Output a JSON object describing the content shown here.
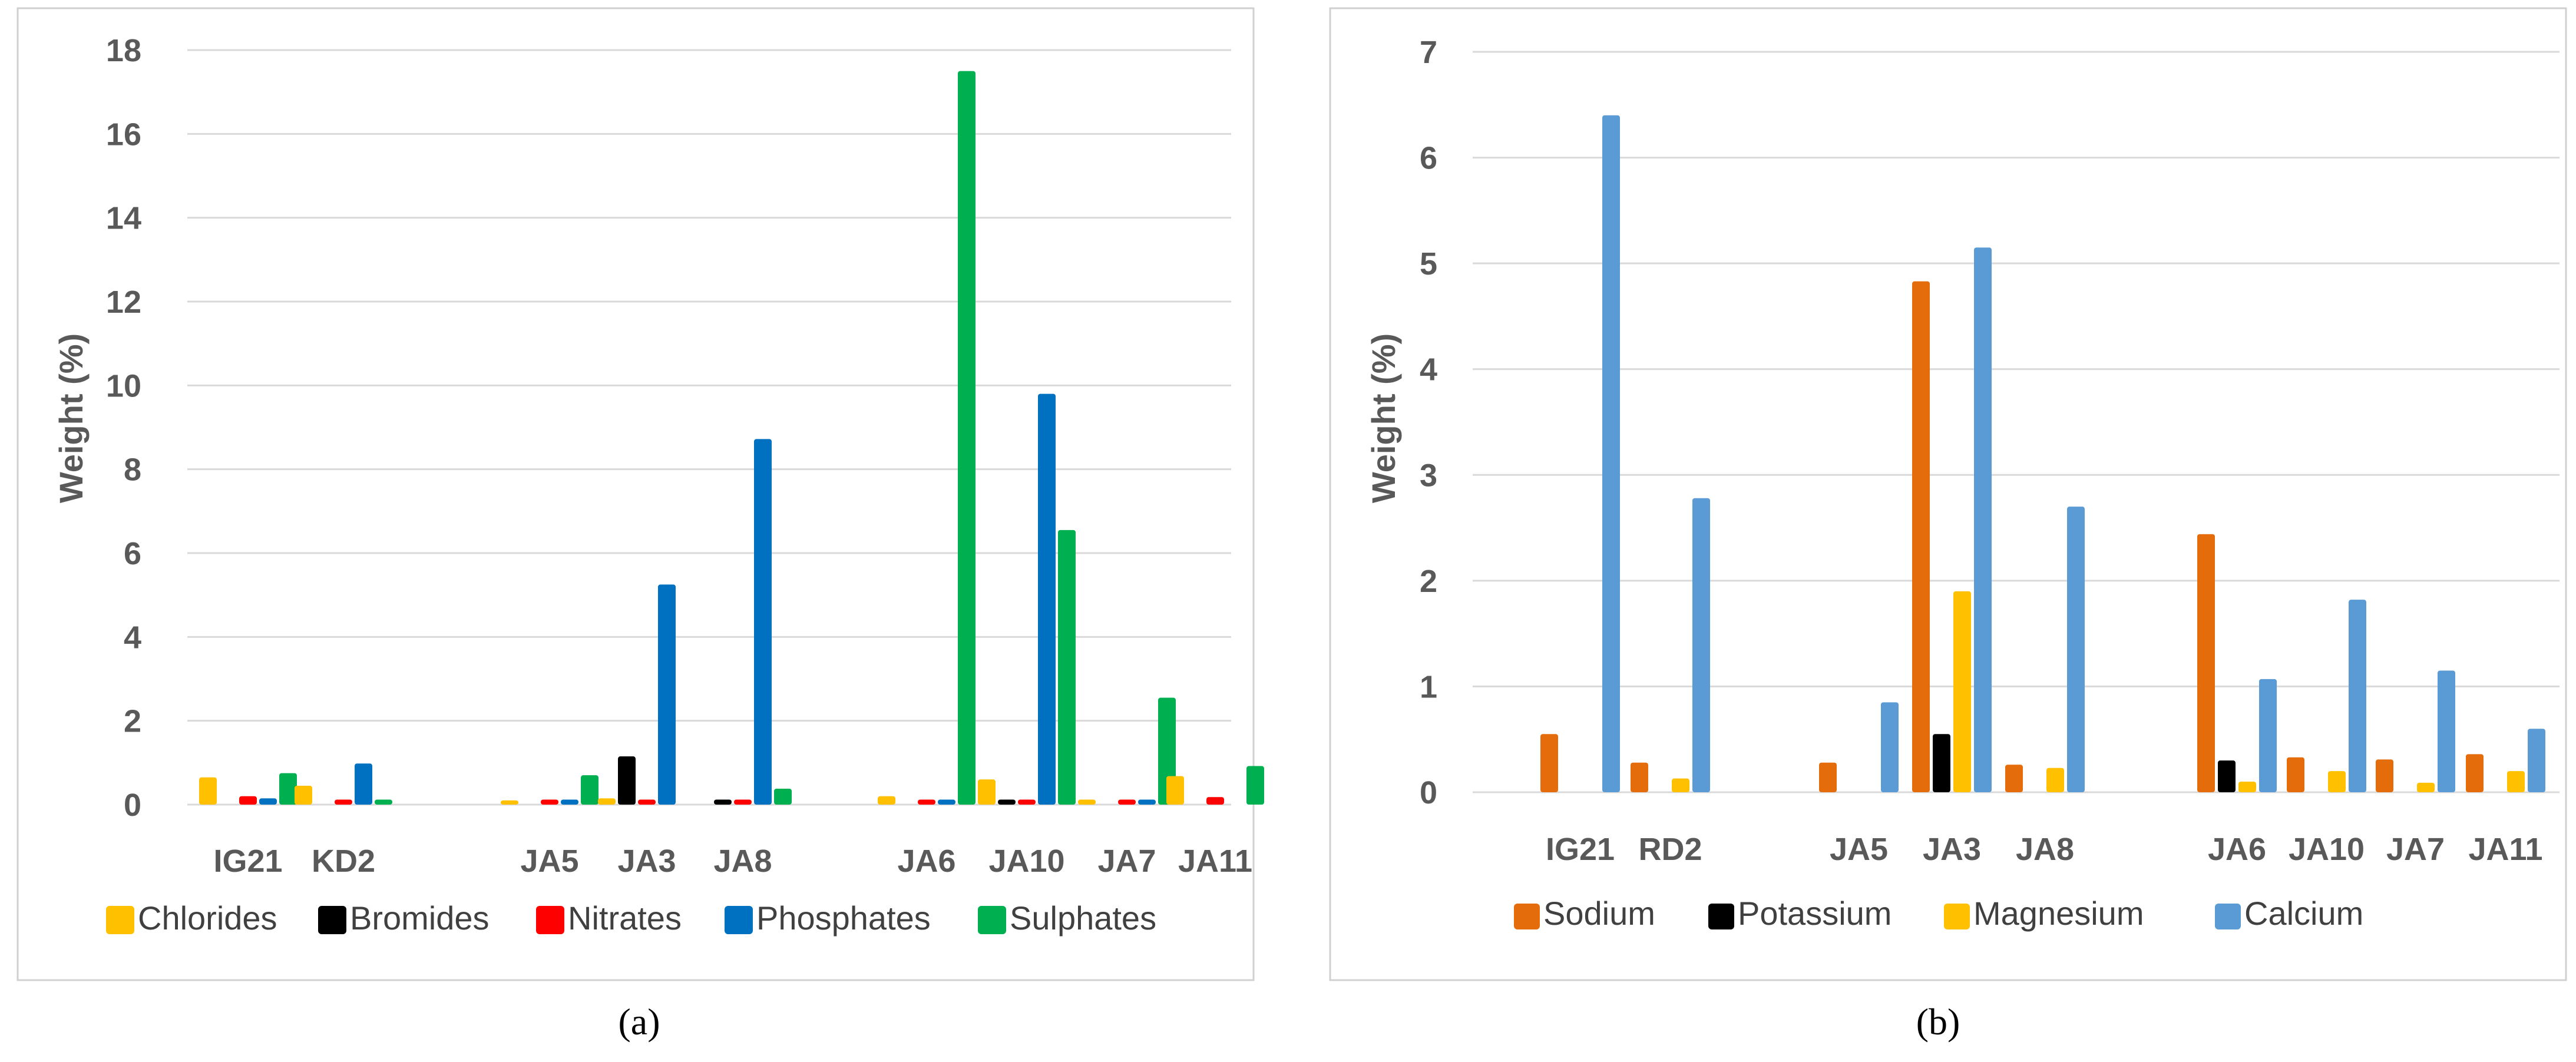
{
  "chart_data": [
    {
      "type": "bar",
      "caption": "(a)",
      "categories": [
        "IG21",
        "KD2",
        "",
        "JA5",
        "JA3",
        "JA8",
        "",
        "JA6",
        "JA10",
        "JA7",
        "JA11"
      ],
      "ylabel": "Weight (%)",
      "ylim": [
        0,
        18
      ],
      "yticks": [
        "0",
        "2",
        "4",
        "6",
        "8",
        "10",
        "12",
        "14",
        "16",
        "18"
      ],
      "ytick_values": [
        0,
        2,
        4,
        6,
        8,
        10,
        12,
        14,
        16,
        18
      ],
      "grid": true,
      "legend_position": "bottom",
      "series": [
        {
          "name": "Chlorides",
          "color": "#FFC000",
          "values": [
            0.65,
            0.45,
            0,
            0.1,
            0.15,
            0,
            0,
            0.2,
            0.6,
            0.12,
            0.68
          ]
        },
        {
          "name": "Bromides",
          "color": "#000000",
          "values": [
            0,
            0,
            0,
            0,
            1.15,
            0.12,
            0,
            0,
            0.12,
            0,
            0
          ]
        },
        {
          "name": "Nitrates",
          "color": "#FF0000",
          "values": [
            0.2,
            0.12,
            0,
            0.12,
            0.12,
            0.12,
            0,
            0.12,
            0.12,
            0.12,
            0.18
          ]
        },
        {
          "name": "Phosphates",
          "color": "#0070C0",
          "values": [
            0.15,
            0.98,
            0,
            0.12,
            5.25,
            8.72,
            0,
            0.12,
            9.8,
            0.12,
            0
          ]
        },
        {
          "name": "Sulphates",
          "color": "#00B050",
          "values": [
            0.75,
            0.12,
            0,
            0.7,
            0,
            0.38,
            0,
            17.5,
            6.55,
            2.55,
            0.92
          ]
        }
      ]
    },
    {
      "type": "bar",
      "caption": "(b)",
      "categories": [
        "IG21",
        "RD2",
        "",
        "JA5",
        "JA3",
        "JA8",
        "",
        "JA6",
        "JA10",
        "JA7",
        "JA11"
      ],
      "ylabel": "Weight (%)",
      "ylim": [
        0,
        7
      ],
      "yticks": [
        "0",
        "1",
        "2",
        "3",
        "4",
        "5",
        "6",
        "7"
      ],
      "ytick_values": [
        0,
        1,
        2,
        3,
        4,
        5,
        6,
        7
      ],
      "grid": true,
      "legend_position": "bottom",
      "series": [
        {
          "name": "Sodium",
          "color": "#E46C0A",
          "values": [
            0.55,
            0.28,
            0,
            0.28,
            4.83,
            0.26,
            0,
            2.44,
            0.33,
            0.31,
            0.36
          ]
        },
        {
          "name": "Potassium",
          "color": "#000000",
          "values": [
            0,
            0,
            0,
            0,
            0.55,
            0,
            0,
            0.3,
            0,
            0,
            0
          ]
        },
        {
          "name": "Magnesium",
          "color": "#FFC000",
          "values": [
            0,
            0.13,
            0,
            0,
            1.9,
            0.23,
            0,
            0.1,
            0.2,
            0.09,
            0.2
          ]
        },
        {
          "name": "Calcium",
          "color": "#5B9BD5",
          "values": [
            6.4,
            2.78,
            0,
            0.85,
            5.15,
            2.7,
            0,
            1.07,
            1.82,
            1.15,
            0.6
          ]
        }
      ]
    }
  ]
}
